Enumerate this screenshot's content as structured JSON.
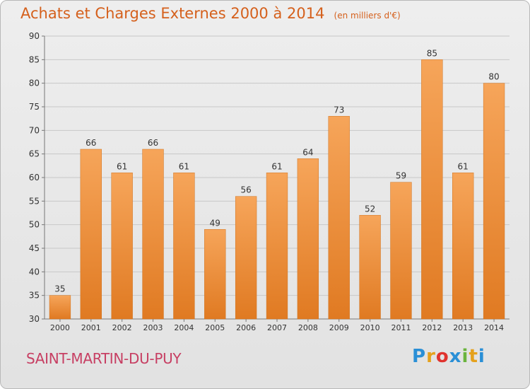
{
  "title": "Achats et Charges Externes 2000 à 2014",
  "subtitle": "(en milliers d'€)",
  "commune": "SAINT-MARTIN-DU-PUY",
  "brand": {
    "letters": [
      "P",
      "r",
      "o",
      "x",
      "i",
      "t",
      "i"
    ],
    "colors": [
      "#2a8fd6",
      "#e5a11c",
      "#e0332e",
      "#2a8fd6",
      "#6ab43e",
      "#e5a11c",
      "#2a8fd6"
    ]
  },
  "colors": {
    "bar_light": "#f6a55a",
    "bar_dark": "#e07a22",
    "title": "#d5601c",
    "commune": "#c73f63"
  },
  "chart_data": {
    "type": "bar",
    "categories": [
      "2000",
      "2001",
      "2002",
      "2003",
      "2004",
      "2005",
      "2006",
      "2007",
      "2008",
      "2009",
      "2010",
      "2011",
      "2012",
      "2013",
      "2014"
    ],
    "values": [
      35,
      66,
      61,
      66,
      61,
      49,
      56,
      61,
      64,
      73,
      52,
      59,
      85,
      61,
      80
    ],
    "ylim": [
      30,
      90
    ],
    "yticks": [
      30,
      35,
      40,
      45,
      50,
      55,
      60,
      65,
      70,
      75,
      80,
      85,
      90
    ],
    "grid": "horizontal",
    "data_labels": true
  }
}
